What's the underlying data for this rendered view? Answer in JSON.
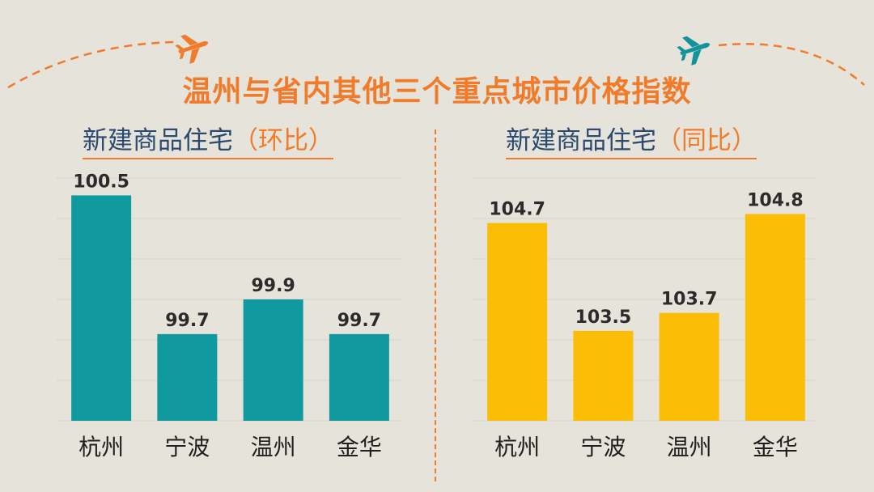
{
  "title": "温州与省内其他三个重点城市价格指数",
  "colors": {
    "background": "#e6e3da",
    "title": "#f07b2a",
    "subtitle": "#2b4a70",
    "accent": "#f07b2a",
    "teal": "#10999e",
    "yellow": "#fbbd06",
    "plane_orange": "#f07b2a",
    "plane_teal": "#12929a"
  },
  "icons": [
    "airplane-icon-orange",
    "airplane-icon-teal"
  ],
  "chart_data": [
    {
      "type": "bar",
      "title_main": "新建商品住宅",
      "title_paren": "（环比）",
      "categories": [
        "杭州",
        "宁波",
        "温州",
        "金华"
      ],
      "values": [
        100.5,
        99.7,
        99.9,
        99.7
      ],
      "value_labels": [
        "100.5",
        "99.7",
        "99.9",
        "99.7"
      ],
      "ylim": [
        99.2,
        100.6
      ],
      "color": "#10999e",
      "grid": true
    },
    {
      "type": "bar",
      "title_main": "新建商品住宅",
      "title_paren": "（同比）",
      "categories": [
        "杭州",
        "宁波",
        "温州",
        "金华"
      ],
      "values": [
        104.7,
        103.5,
        103.7,
        104.8
      ],
      "value_labels": [
        "104.7",
        "103.5",
        "103.7",
        "104.8"
      ],
      "ylim": [
        102.5,
        105.2
      ],
      "color": "#fbbd06",
      "grid": true
    }
  ]
}
